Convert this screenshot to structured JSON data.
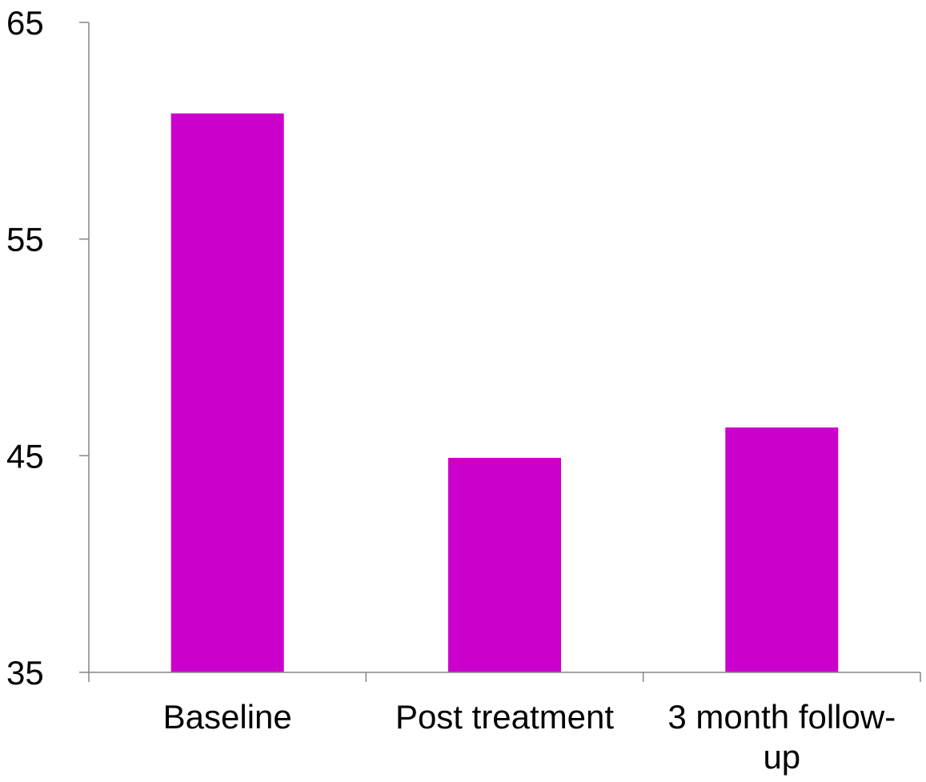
{
  "chart_data": {
    "type": "bar",
    "categories": [
      "Baseline",
      "Post treatment",
      "3 month follow-up"
    ],
    "category_label_lines": [
      [
        "Baseline"
      ],
      [
        "Post treatment"
      ],
      [
        "3 month follow-",
        "up"
      ]
    ],
    "values": [
      60.8,
      44.9,
      46.3
    ],
    "ylim": [
      35,
      65
    ],
    "yticks": [
      "35",
      "45",
      "55",
      "65"
    ],
    "title": "",
    "xlabel": "",
    "ylabel": "",
    "grid": false,
    "legend": "none",
    "bar_color": "#CC00CC",
    "axis_color": "#868686"
  }
}
